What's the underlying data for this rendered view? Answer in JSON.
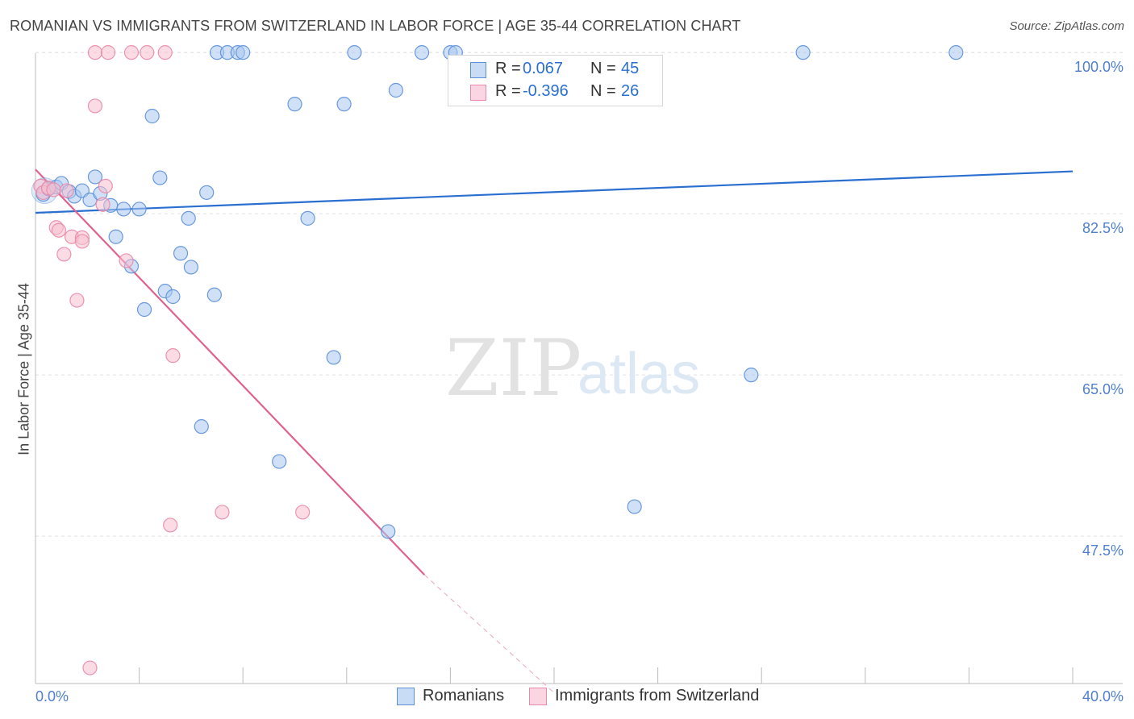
{
  "header": {
    "title": "ROMANIAN VS IMMIGRANTS FROM SWITZERLAND IN LABOR FORCE | AGE 35-44 CORRELATION CHART",
    "source": "Source: ZipAtlas.com"
  },
  "watermark": {
    "zip": "ZIP",
    "atlas": "atlas"
  },
  "colors": {
    "blue_fill": "#aac8f0",
    "blue_stroke": "#5b8fd8",
    "blue_line": "#2a6fd0",
    "pink_fill": "#f7bfd0",
    "pink_stroke": "#e98aa8",
    "pink_line": "#e0628f",
    "grid": "#e0e0e0",
    "axis_label": "#4f7fcf"
  },
  "legend": {
    "rows": [
      {
        "r_label": "R =",
        "r_value": "0.067",
        "n_label": "N =",
        "n_value": "45"
      },
      {
        "r_label": "R =",
        "r_value": "-0.396",
        "n_label": "N =",
        "n_value": "26"
      }
    ]
  },
  "bottom_legend": {
    "series1": "Romanians",
    "series2": "Immigrants from Switzerland"
  },
  "chart_data": {
    "type": "scatter",
    "title": "ROMANIAN VS IMMIGRANTS FROM SWITZERLAND IN LABOR FORCE | AGE 35-44 CORRELATION CHART",
    "xlabel": "",
    "ylabel": "In Labor Force | Age 35-44",
    "xlim": [
      0,
      40
    ],
    "ylim": [
      31.5,
      101.5
    ],
    "x_tick_labels": [
      {
        "value": 0,
        "label": "0.0%"
      },
      {
        "value": 40,
        "label": "40.0%"
      }
    ],
    "y_tick_labels": [
      {
        "value": 100,
        "label": "100.0%"
      },
      {
        "value": 82.5,
        "label": "82.5%"
      },
      {
        "value": 65,
        "label": "65.0%"
      },
      {
        "value": 47.5,
        "label": "47.5%"
      }
    ],
    "x_minor_ticks": [
      0,
      4,
      8,
      12,
      16,
      20,
      24,
      28,
      32,
      36,
      40
    ],
    "grid": true,
    "series": [
      {
        "name": "Romanians",
        "color": "#5b8fd8",
        "points": [
          [
            0.3,
            84.6
          ],
          [
            0.5,
            85.2
          ],
          [
            0.8,
            85.4
          ],
          [
            1.0,
            85.8
          ],
          [
            1.3,
            84.9
          ],
          [
            1.5,
            84.4
          ],
          [
            1.8,
            85.0
          ],
          [
            2.1,
            84.0
          ],
          [
            2.3,
            86.5
          ],
          [
            2.5,
            84.7
          ],
          [
            2.9,
            83.4
          ],
          [
            3.1,
            80.0
          ],
          [
            3.4,
            83.0
          ],
          [
            3.7,
            76.8
          ],
          [
            4.0,
            83.0
          ],
          [
            4.2,
            72.1
          ],
          [
            4.5,
            93.1
          ],
          [
            4.8,
            86.4
          ],
          [
            5.0,
            74.1
          ],
          [
            5.3,
            73.5
          ],
          [
            5.6,
            78.2
          ],
          [
            5.9,
            82.0
          ],
          [
            6.0,
            76.7
          ],
          [
            6.4,
            59.4
          ],
          [
            6.6,
            84.8
          ],
          [
            6.9,
            73.7
          ],
          [
            7.0,
            100.0
          ],
          [
            7.4,
            100.0
          ],
          [
            7.8,
            100.0
          ],
          [
            8.0,
            100.0
          ],
          [
            9.4,
            55.6
          ],
          [
            10.0,
            94.4
          ],
          [
            10.5,
            82.0
          ],
          [
            11.5,
            66.9
          ],
          [
            11.9,
            94.4
          ],
          [
            12.3,
            100.0
          ],
          [
            13.6,
            48.0
          ],
          [
            13.9,
            95.9
          ],
          [
            14.9,
            100.0
          ],
          [
            16.0,
            100.0
          ],
          [
            16.2,
            100.0
          ],
          [
            23.1,
            50.7
          ],
          [
            27.6,
            65.0
          ],
          [
            29.6,
            100.0
          ],
          [
            35.5,
            100.0
          ]
        ]
      },
      {
        "name": "Immigrants from Switzerland",
        "color": "#e98aa8",
        "points": [
          [
            0.2,
            85.5
          ],
          [
            0.3,
            84.8
          ],
          [
            0.5,
            85.3
          ],
          [
            0.7,
            85.1
          ],
          [
            0.8,
            81.0
          ],
          [
            0.9,
            80.7
          ],
          [
            1.1,
            78.1
          ],
          [
            1.2,
            85.0
          ],
          [
            1.4,
            80.0
          ],
          [
            1.6,
            73.1
          ],
          [
            1.8,
            79.9
          ],
          [
            1.8,
            79.5
          ],
          [
            2.1,
            33.2
          ],
          [
            2.3,
            100.0
          ],
          [
            2.3,
            94.2
          ],
          [
            2.6,
            83.5
          ],
          [
            2.7,
            85.5
          ],
          [
            2.8,
            100.0
          ],
          [
            3.5,
            77.4
          ],
          [
            3.7,
            100.0
          ],
          [
            4.3,
            100.0
          ],
          [
            5.0,
            100.0
          ],
          [
            5.2,
            48.7
          ],
          [
            5.3,
            67.1
          ],
          [
            7.2,
            50.1
          ],
          [
            10.3,
            50.1
          ]
        ]
      }
    ],
    "trend_lines": [
      {
        "series": "Romanians",
        "x": [
          0,
          40
        ],
        "y": [
          82.6,
          87.1
        ],
        "style": "solid"
      },
      {
        "series": "Immigrants from Switzerland",
        "x": [
          0,
          15
        ],
        "y": [
          87.3,
          43.3
        ],
        "style": "solid"
      },
      {
        "series": "Immigrants from Switzerland",
        "x": [
          15,
          20
        ],
        "y": [
          43.3,
          30.5
        ],
        "style": "dashed"
      }
    ]
  }
}
